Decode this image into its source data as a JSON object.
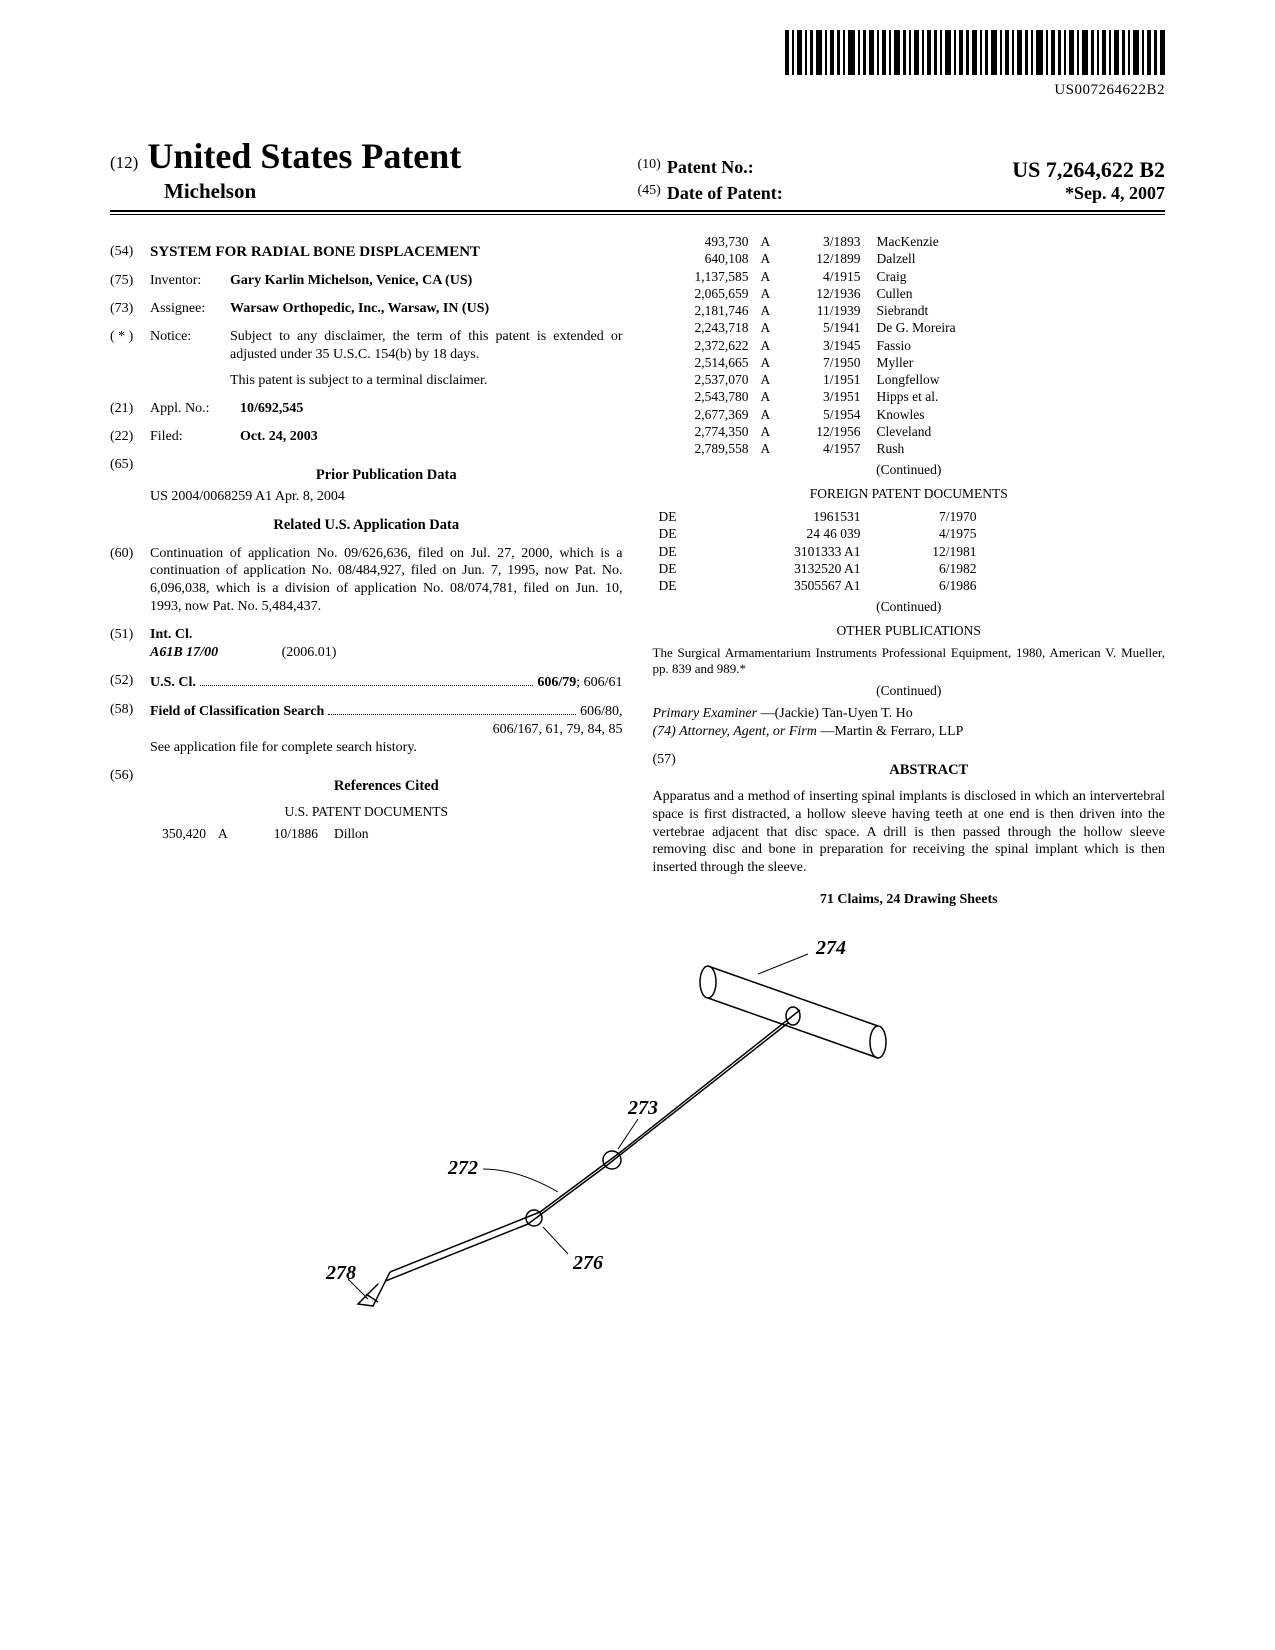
{
  "barcode_text": "US007264622B2",
  "header": {
    "prefix_num": "(12)",
    "country_title": "United States Patent",
    "inventor_surname": "Michelson",
    "patno_prefix": "(10)",
    "patno_label": "Patent No.:",
    "patno_value": "US 7,264,622 B2",
    "date_prefix": "(45)",
    "date_label": "Date of Patent:",
    "date_value": "*Sep. 4, 2007"
  },
  "left_col": {
    "title_num": "(54)",
    "title": "SYSTEM FOR RADIAL BONE DISPLACEMENT",
    "inventor_num": "(75)",
    "inventor_label": "Inventor:",
    "inventor_value": "Gary Karlin Michelson, Venice, CA (US)",
    "assignee_num": "(73)",
    "assignee_label": "Assignee:",
    "assignee_value": "Warsaw Orthopedic, Inc., Warsaw, IN (US)",
    "notice_num": "( * )",
    "notice_label": "Notice:",
    "notice_value": "Subject to any disclaimer, the term of this patent is extended or adjusted under 35 U.S.C. 154(b) by 18 days.",
    "notice_value2": "This patent is subject to a terminal disclaimer.",
    "appl_num": "(21)",
    "appl_label": "Appl. No.:",
    "appl_value": "10/692,545",
    "filed_num": "(22)",
    "filed_label": "Filed:",
    "filed_value": "Oct. 24, 2003",
    "priorpub_num": "(65)",
    "priorpub_title": "Prior Publication Data",
    "priorpub_value": "US 2004/0068259 A1      Apr. 8, 2004",
    "related_title": "Related U.S. Application Data",
    "related_num": "(60)",
    "related_body": "Continuation of application No. 09/626,636, filed on Jul. 27, 2000, which is a continuation of application No. 08/484,927, filed on Jun. 7, 1995, now Pat. No. 6,096,038, which is a division of application No. 08/074,781, filed on Jun. 10, 1993, now Pat. No. 5,484,437.",
    "intcl_num": "(51)",
    "intcl_label": "Int. Cl.",
    "intcl_code": "A61B 17/00",
    "intcl_year": "(2006.01)",
    "uscl_num": "(52)",
    "uscl_label": "U.S. Cl.",
    "uscl_main": "606/79",
    "uscl_other": "; 606/61",
    "fos_num": "(58)",
    "fos_label": "Field of Classification Search",
    "fos_value": "606/80, 606/167, 61, 79, 84, 85",
    "fos_note": "See application file for complete search history.",
    "refs_num": "(56)",
    "refs_title": "References Cited",
    "us_docs_title": "U.S. PATENT DOCUMENTS",
    "us_doc_first": {
      "num": "350,420",
      "kind": "A",
      "date": "10/1886",
      "name": "Dillon"
    }
  },
  "right_col": {
    "us_docs": [
      {
        "num": "493,730",
        "kind": "A",
        "date": "3/1893",
        "name": "MacKenzie"
      },
      {
        "num": "640,108",
        "kind": "A",
        "date": "12/1899",
        "name": "Dalzell"
      },
      {
        "num": "1,137,585",
        "kind": "A",
        "date": "4/1915",
        "name": "Craig"
      },
      {
        "num": "2,065,659",
        "kind": "A",
        "date": "12/1936",
        "name": "Cullen"
      },
      {
        "num": "2,181,746",
        "kind": "A",
        "date": "11/1939",
        "name": "Siebrandt"
      },
      {
        "num": "2,243,718",
        "kind": "A",
        "date": "5/1941",
        "name": "De G. Moreira"
      },
      {
        "num": "2,372,622",
        "kind": "A",
        "date": "3/1945",
        "name": "Fassio"
      },
      {
        "num": "2,514,665",
        "kind": "A",
        "date": "7/1950",
        "name": "Myller"
      },
      {
        "num": "2,537,070",
        "kind": "A",
        "date": "1/1951",
        "name": "Longfellow"
      },
      {
        "num": "2,543,780",
        "kind": "A",
        "date": "3/1951",
        "name": "Hipps et al."
      },
      {
        "num": "2,677,369",
        "kind": "A",
        "date": "5/1954",
        "name": "Knowles"
      },
      {
        "num": "2,774,350",
        "kind": "A",
        "date": "12/1956",
        "name": "Cleveland"
      },
      {
        "num": "2,789,558",
        "kind": "A",
        "date": "4/1957",
        "name": "Rush"
      }
    ],
    "continued1": "(Continued)",
    "foreign_title": "FOREIGN PATENT DOCUMENTS",
    "foreign_docs": [
      {
        "cc": "DE",
        "num": "1961531",
        "date": "7/1970"
      },
      {
        "cc": "DE",
        "num": "24 46 039",
        "date": "4/1975"
      },
      {
        "cc": "DE",
        "num": "3101333 A1",
        "date": "12/1981"
      },
      {
        "cc": "DE",
        "num": "3132520 A1",
        "date": "6/1982"
      },
      {
        "cc": "DE",
        "num": "3505567 A1",
        "date": "6/1986"
      }
    ],
    "continued2": "(Continued)",
    "other_pubs_title": "OTHER PUBLICATIONS",
    "other_pubs_body": "The Surgical Armamentarium Instruments Professional Equipment, 1980, American V. Mueller, pp. 839 and 989.*",
    "continued3": "(Continued)",
    "examiner_label": "Primary Examiner",
    "examiner_value": "—(Jackie) Tan-Uyen T. Ho",
    "attorney_label": "(74) Attorney, Agent, or Firm",
    "attorney_value": "—Martin & Ferraro, LLP",
    "abstract_num": "(57)",
    "abstract_title": "ABSTRACT",
    "abstract_body": "Apparatus and a method of inserting spinal implants is disclosed in which an intervertebral space is first distracted, a hollow sleeve having teeth at one end is then driven into the vertebrae adjacent that disc space. A drill is then passed through the hollow sleeve removing disc and bone in preparation for receiving the spinal implant which is then inserted through the sleeve.",
    "claims_line": "71 Claims, 24 Drawing Sheets"
  },
  "figure": {
    "labels": {
      "handle": "274",
      "shaft_joint": "273",
      "upper_shaft": "272",
      "lower_joint": "276",
      "tip": "278"
    }
  },
  "colors": {
    "text": "#000000",
    "background": "#ffffff"
  }
}
